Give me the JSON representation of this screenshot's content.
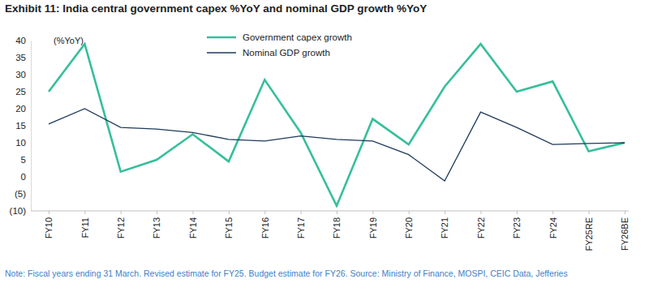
{
  "chart_data": {
    "type": "line",
    "title": "Exhibit 11: India central government capex %YoY and nominal GDP growth %YoY",
    "y_label": "(%YoY)",
    "note": "Note: Fiscal years ending 31 March. Revised estimate for FY25. Budget estimate for FY26. Source: Ministry of Finance, MOSPI, CEIC Data, Jefferies",
    "categories": [
      "FY10",
      "FY11",
      "FY12",
      "FY13",
      "FY14",
      "FY15",
      "FY16",
      "FY17",
      "FY18",
      "FY19",
      "FY20",
      "FY21",
      "FY22",
      "FY23",
      "FY24",
      "FY25RE",
      "FY26BE"
    ],
    "series": [
      {
        "name": "Government capex growth",
        "color": "#36bf9b",
        "values": [
          25,
          39,
          1.5,
          5,
          12.5,
          4.5,
          28.5,
          13,
          -8.5,
          17,
          9.5,
          26.5,
          39,
          25,
          28,
          7.5,
          10
        ]
      },
      {
        "name": "Nominal GDP growth",
        "color": "#1f3a5c",
        "values": [
          15.5,
          20,
          14.5,
          14,
          13,
          11,
          10.5,
          12,
          11,
          10.5,
          6.5,
          -1.2,
          19,
          14.5,
          9.5,
          9.8,
          10
        ]
      }
    ],
    "ylim": [
      -10,
      40
    ],
    "yticks": [
      40,
      35,
      30,
      25,
      20,
      15,
      10,
      5,
      0,
      {
        "value": -5,
        "label": "(5)"
      },
      {
        "value": -10,
        "label": "(10)"
      }
    ],
    "grid": false,
    "legend": "upper center"
  }
}
